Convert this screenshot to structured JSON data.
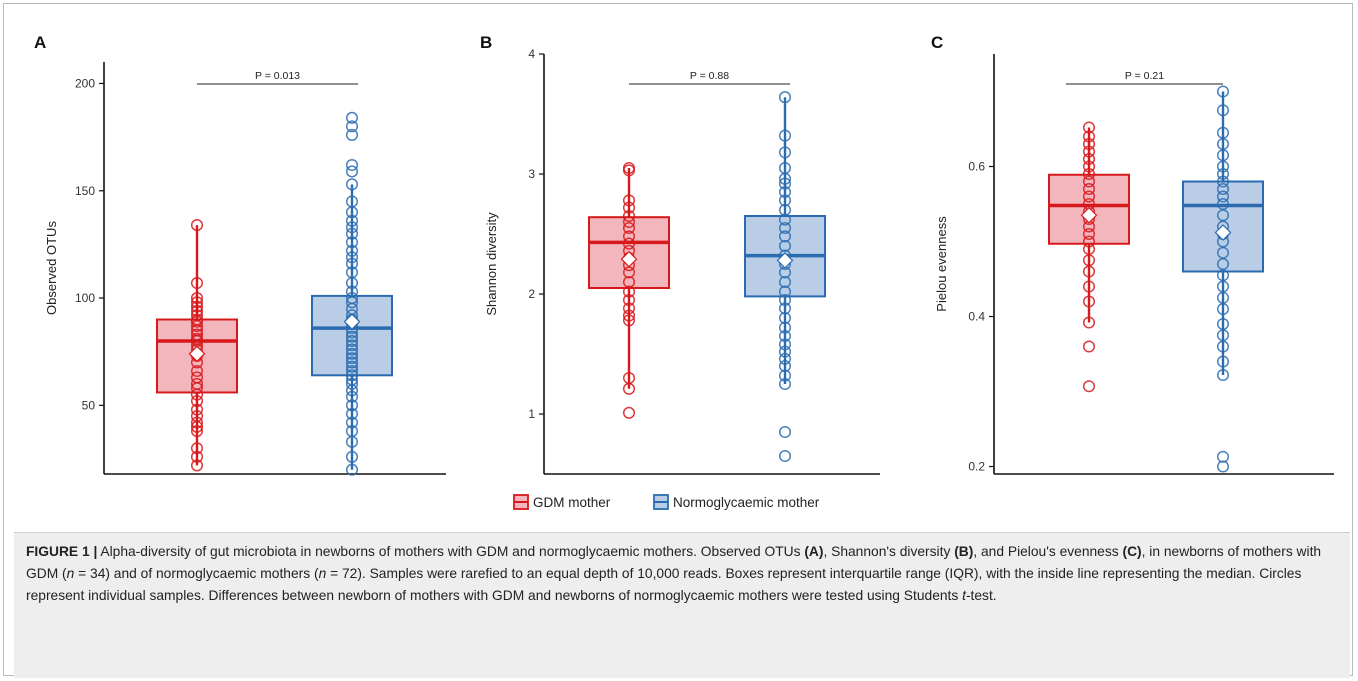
{
  "colors": {
    "gdm": "#d7191c",
    "gdm_fill": "#f4b6bd",
    "normo": "#2b6cb0",
    "normo_fill": "#b9cde6"
  },
  "legend": {
    "items": [
      {
        "label": "GDM mother",
        "color": "#d7191c",
        "fill": "#f4b6bd"
      },
      {
        "label": "Normoglycaemic mother",
        "color": "#2b6cb0",
        "fill": "#b9cde6"
      }
    ]
  },
  "chart_data": [
    {
      "type": "box",
      "panel_label": "A",
      "ylabel": "Observed OTUs",
      "ylim": [
        18,
        210
      ],
      "yticks": [
        50,
        100,
        150,
        200
      ],
      "p_label": "P = 0.013",
      "groups": [
        {
          "name": "GDM mother",
          "whisker_low": 22,
          "q1": 56,
          "median": 80,
          "q3": 90,
          "whisker_high": 134,
          "mean": 74,
          "points": [
            22,
            26,
            30,
            38,
            40,
            42,
            45,
            48,
            52,
            55,
            58,
            60,
            63,
            66,
            70,
            73,
            76,
            78,
            80,
            81,
            83,
            85,
            87,
            89,
            90,
            92,
            94,
            96,
            98,
            100,
            107,
            134
          ]
        },
        {
          "name": "Normoglycaemic mother",
          "whisker_low": 20,
          "q1": 64,
          "median": 86,
          "q3": 101,
          "whisker_high": 153,
          "mean": 89,
          "points": [
            20,
            26,
            33,
            38,
            42,
            46,
            50,
            54,
            57,
            60,
            62,
            64,
            66,
            68,
            70,
            72,
            74,
            76,
            78,
            80,
            82,
            84,
            86,
            88,
            90,
            92,
            95,
            98,
            100,
            103,
            107,
            112,
            116,
            119,
            122,
            126,
            130,
            133,
            136,
            140,
            145,
            153,
            159,
            162,
            176,
            180,
            184
          ]
        }
      ]
    },
    {
      "type": "box",
      "panel_label": "B",
      "ylabel": "Shannon diversity",
      "ylim": [
        0.5,
        4.0
      ],
      "yticks": [
        1,
        2,
        3,
        4
      ],
      "p_label": "P = 0.88",
      "groups": [
        {
          "name": "GDM mother",
          "whisker_low": 1.21,
          "q1": 2.05,
          "median": 2.43,
          "q3": 2.64,
          "whisker_high": 3.05,
          "mean": 2.29,
          "points": [
            1.01,
            1.21,
            1.3,
            1.78,
            1.82,
            1.88,
            1.95,
            2.02,
            2.1,
            2.18,
            2.24,
            2.3,
            2.36,
            2.42,
            2.48,
            2.55,
            2.6,
            2.65,
            2.72,
            2.78,
            3.03,
            3.05
          ]
        },
        {
          "name": "Normoglycaemic mother",
          "whisker_low": 1.25,
          "q1": 1.98,
          "median": 2.32,
          "q3": 2.65,
          "whisker_high": 3.64,
          "mean": 2.28,
          "points": [
            0.65,
            0.85,
            1.25,
            1.32,
            1.4,
            1.46,
            1.52,
            1.58,
            1.65,
            1.72,
            1.8,
            1.88,
            1.95,
            2.02,
            2.1,
            2.18,
            2.25,
            2.32,
            2.4,
            2.48,
            2.55,
            2.62,
            2.7,
            2.78,
            2.85,
            2.92,
            2.96,
            3.05,
            3.18,
            3.32,
            3.64
          ]
        }
      ]
    },
    {
      "type": "box",
      "panel_label": "C",
      "ylabel": "Pielou evenness",
      "ylim": [
        0.19,
        0.75
      ],
      "yticks": [
        0.2,
        0.4,
        0.6
      ],
      "p_label": "P = 0.21",
      "groups": [
        {
          "name": "GDM mother",
          "whisker_low": 0.392,
          "q1": 0.497,
          "median": 0.548,
          "q3": 0.589,
          "whisker_high": 0.652,
          "mean": 0.535,
          "points": [
            0.307,
            0.36,
            0.392,
            0.42,
            0.44,
            0.46,
            0.475,
            0.49,
            0.5,
            0.51,
            0.52,
            0.53,
            0.54,
            0.55,
            0.56,
            0.57,
            0.58,
            0.59,
            0.6,
            0.61,
            0.62,
            0.63,
            0.64,
            0.652
          ]
        },
        {
          "name": "Normoglycaemic mother",
          "whisker_low": 0.322,
          "q1": 0.46,
          "median": 0.548,
          "q3": 0.58,
          "whisker_high": 0.7,
          "mean": 0.512,
          "points": [
            0.2,
            0.213,
            0.322,
            0.34,
            0.36,
            0.375,
            0.39,
            0.41,
            0.425,
            0.44,
            0.455,
            0.47,
            0.485,
            0.5,
            0.51,
            0.52,
            0.535,
            0.55,
            0.56,
            0.57,
            0.58,
            0.59,
            0.6,
            0.615,
            0.63,
            0.645,
            0.675,
            0.7
          ]
        }
      ]
    }
  ],
  "caption": {
    "figure_label": "FIGURE 1 |",
    "text_1": " Alpha-diversity of gut microbiota in newborns of mothers with GDM and normoglycaemic mothers. Observed OTUs ",
    "ref_a": "(A)",
    "text_2": ", Shannon's diversity ",
    "ref_b": "(B)",
    "text_3": ", and Pielou's evenness ",
    "ref_c": "(C)",
    "text_4": ", in newborns of mothers with GDM (",
    "n_symbol_1": "n",
    "n_value_1": " = 34) and of normoglycaemic mothers (",
    "n_symbol_2": "n",
    "n_value_2": " = 72). Samples were rarefied to an equal depth of 10,000 reads. Boxes represent interquartile range (IQR), with the inside line representing the median. Circles represent individual samples. Differences between newborn of mothers with GDM and newborns of normoglycaemic mothers were tested using Students ",
    "t_symbol": "t",
    "text_5": "-test."
  }
}
